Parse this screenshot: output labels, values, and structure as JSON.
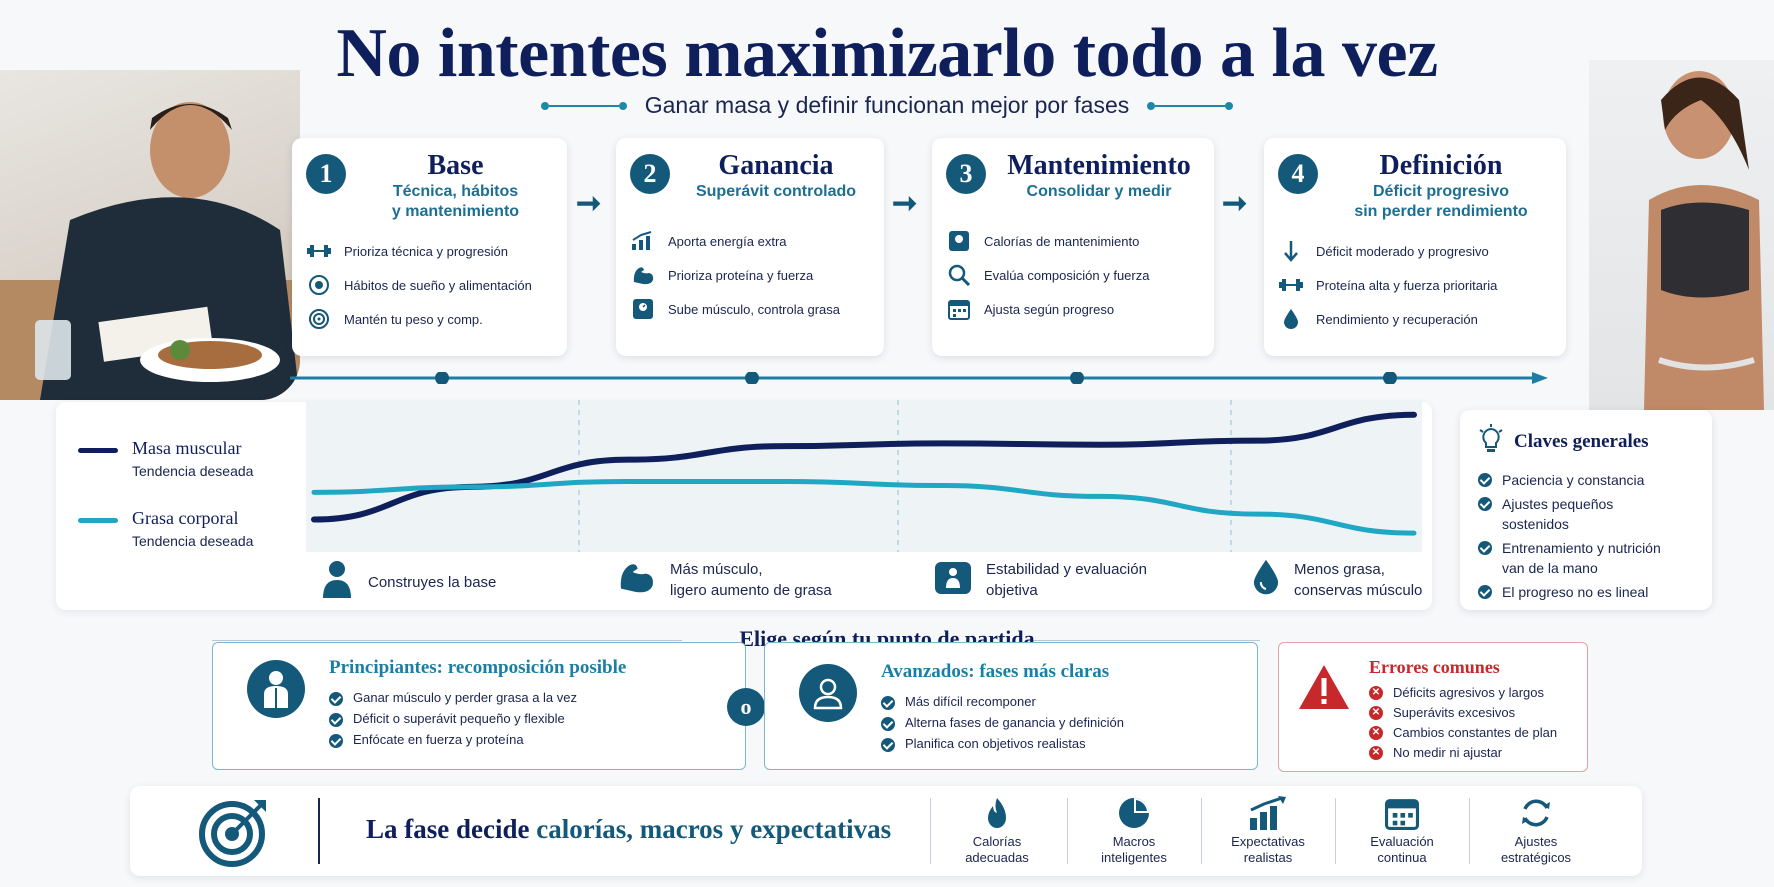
{
  "header": {
    "title": "No intentes maximizarlo todo a la vez",
    "subtitle": "Ganar masa y definir funcionan mejor por fases"
  },
  "phases": [
    {
      "number": "1",
      "title": "Base",
      "subtitle_l1": "Técnica, hábitos",
      "subtitle_l2": "y mantenimiento",
      "items": [
        {
          "icon": "dumbbell-icon",
          "text": "Prioriza técnica y progresión"
        },
        {
          "icon": "plate-icon",
          "text": "Hábitos de sueño y alimentación"
        },
        {
          "icon": "target-icon",
          "text": "Mantén tu peso y comp."
        }
      ]
    },
    {
      "number": "2",
      "title": "Ganancia",
      "subtitle_l1": "Superávit controlado",
      "subtitle_l2": "",
      "items": [
        {
          "icon": "chart-up-icon",
          "text": "Aporta energía extra"
        },
        {
          "icon": "bicep-icon",
          "text": "Prioriza proteína y fuerza"
        },
        {
          "icon": "scale-icon",
          "text": "Sube músculo, controla grasa"
        }
      ]
    },
    {
      "number": "3",
      "title": "Mantenimiento",
      "subtitle_l1": "Consolidar y medir",
      "subtitle_l2": "",
      "items": [
        {
          "icon": "scale-icon",
          "text": "Calorías de mantenimiento"
        },
        {
          "icon": "magnifier-icon",
          "text": "Evalúa composición y fuerza"
        },
        {
          "icon": "calendar-icon",
          "text": "Ajusta según progreso"
        }
      ]
    },
    {
      "number": "4",
      "title": "Definición",
      "subtitle_l1": "Déficit progresivo",
      "subtitle_l2": "sin perder rendimiento",
      "items": [
        {
          "icon": "arrow-down-icon",
          "text": "Déficit moderado y progresivo"
        },
        {
          "icon": "dumbbell-icon",
          "text": "Proteína alta y fuerza prioritaria"
        },
        {
          "icon": "drop-icon",
          "text": "Rendimiento y recuperación"
        }
      ]
    }
  ],
  "legend": {
    "muscle_label": "Masa muscular",
    "muscle_sub": "Tendencia deseada",
    "fat_label": "Grasa corporal",
    "fat_sub": "Tendencia deseada"
  },
  "phase_outcomes": [
    {
      "icon": "person-icon",
      "l1": "Construyes la base",
      "l2": ""
    },
    {
      "icon": "bicep-icon",
      "l1": "Más músculo,",
      "l2": "ligero aumento de grasa"
    },
    {
      "icon": "scale-person-icon",
      "l1": "Estabilidad y evaluación",
      "l2": "objetiva"
    },
    {
      "icon": "drop-icon",
      "l1": "Menos grasa,",
      "l2": "conservas músculo"
    }
  ],
  "claves": {
    "title": "Claves generales",
    "items": [
      {
        "l1": "Paciencia y constancia",
        "l2": ""
      },
      {
        "l1": "Ajustes pequeños",
        "l2": "sostenidos"
      },
      {
        "l1": "Entrenamiento y nutrición",
        "l2": "van de la mano"
      },
      {
        "l1": "El progreso no es lineal",
        "l2": ""
      }
    ]
  },
  "choose": {
    "heading": "Elige según tu punto de partida",
    "or_label": "o",
    "beginners": {
      "title": "Principiantes: recomposición posible",
      "items": [
        "Ganar músculo y perder grasa a la vez",
        "Déficit o superávit pequeño y flexible",
        "Enfócate en fuerza y proteína"
      ]
    },
    "advanced": {
      "title": "Avanzados: fases más claras",
      "items": [
        "Más difícil recomponer",
        "Alterna fases de ganancia y definición",
        "Planifica con objetivos realistas"
      ]
    },
    "errors": {
      "title": "Errores comunes",
      "items": [
        "Déficits agresivos y largos",
        "Superávits excesivos",
        "Cambios constantes de plan",
        "No medir ni ajustar"
      ]
    }
  },
  "footer": {
    "text_part1": "La fase decide ",
    "text_part2": "calorías, macros y expectativas",
    "cells": [
      {
        "icon": "flame-icon",
        "l1": "Calorías",
        "l2": "adecuadas"
      },
      {
        "icon": "pie-chart-icon",
        "l1": "Macros",
        "l2": "inteligentes"
      },
      {
        "icon": "bar-chart-icon",
        "l1": "Expectativas",
        "l2": "realistas"
      },
      {
        "icon": "calendar-icon",
        "l1": "Evaluación",
        "l2": "continua"
      },
      {
        "icon": "refresh-icon",
        "l1": "Ajustes",
        "l2": "estratégicos"
      }
    ]
  },
  "colors": {
    "navy": "#0f1f5c",
    "teal": "#1c8aa6",
    "dark_teal": "#14587a",
    "error_red": "#c6282b"
  },
  "trend_data": {
    "muscle": [
      0.18,
      0.42,
      0.62,
      0.72,
      0.74,
      0.73,
      0.76,
      0.95
    ],
    "fat": [
      0.38,
      0.42,
      0.46,
      0.46,
      0.43,
      0.35,
      0.22,
      0.08
    ]
  }
}
